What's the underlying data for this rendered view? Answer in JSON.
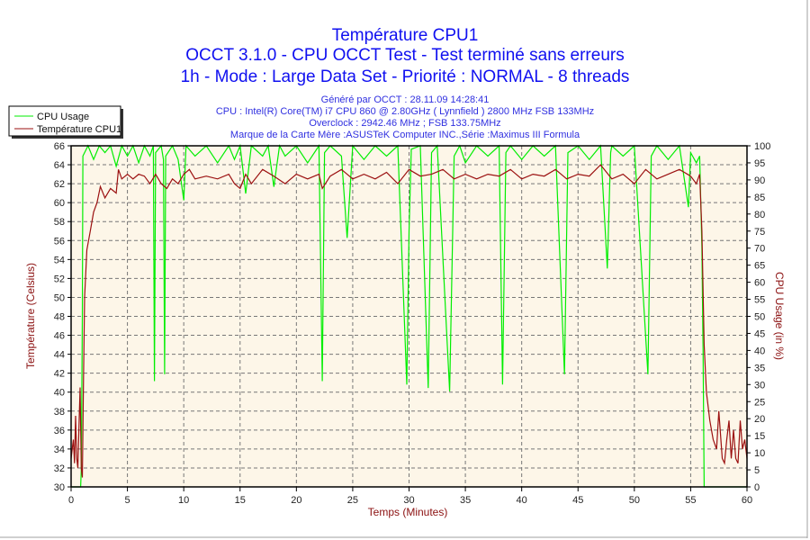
{
  "titles": [
    "Température CPU1",
    "OCCT 3.1.0 - CPU OCCT Test - Test terminé sans erreurs",
    "1h - Mode : Large Data Set - Priorité : NORMAL - 8 threads"
  ],
  "info": [
    "Généré par OCCT : 28.11.09 14:28:41",
    "CPU : Intel(R) Core(TM) i7 CPU 860 @ 2.80GHz ( Lynnfield ) 2800 MHz FSB 133MHz",
    "Overclock : 2942.46 MHz ; FSB 133.75MHz",
    "Marque de la Carte Mère :ASUSTeK Computer INC.,Série :Maximus III Formula"
  ],
  "chart_data": {
    "type": "line",
    "xlabel": "Temps (Minutes)",
    "ylabel": "Température (Celsius)",
    "y2label": "CPU Usage (in %)",
    "xlim": [
      0,
      60
    ],
    "ylim": [
      30,
      66
    ],
    "y2lim": [
      0,
      100
    ],
    "xticks": [
      0,
      5,
      10,
      15,
      20,
      25,
      30,
      35,
      40,
      45,
      50,
      55,
      60
    ],
    "yticks": [
      30,
      32,
      34,
      36,
      38,
      40,
      42,
      44,
      46,
      48,
      50,
      52,
      54,
      56,
      58,
      60,
      62,
      64,
      66
    ],
    "y2ticks": [
      0,
      5,
      10,
      15,
      20,
      25,
      30,
      35,
      40,
      45,
      50,
      55,
      60,
      65,
      70,
      75,
      80,
      85,
      90,
      95,
      100
    ],
    "grid": true,
    "legend": "top-left",
    "colors": {
      "cpu_usage": "#00ee00",
      "temperature": "#9b1010",
      "plot_bg": "#fdf6e8",
      "title": "#1010f0"
    },
    "series": [
      {
        "name": "CPU Usage",
        "axis": "right",
        "points": [
          [
            0,
            0
          ],
          [
            0.85,
            0
          ],
          [
            0.9,
            5
          ],
          [
            1.0,
            50
          ],
          [
            1.05,
            97
          ],
          [
            1.5,
            100
          ],
          [
            2,
            96
          ],
          [
            2.5,
            100
          ],
          [
            3,
            98
          ],
          [
            3.5,
            100
          ],
          [
            4,
            94
          ],
          [
            4.5,
            100
          ],
          [
            5,
            97
          ],
          [
            5.5,
            100
          ],
          [
            6,
            95
          ],
          [
            6.5,
            100
          ],
          [
            7,
            97
          ],
          [
            7.3,
            100
          ],
          [
            7.4,
            31
          ],
          [
            7.5,
            98
          ],
          [
            8,
            100
          ],
          [
            8.2,
            96
          ],
          [
            8.3,
            33
          ],
          [
            8.4,
            97
          ],
          [
            9,
            100
          ],
          [
            9.5,
            96
          ],
          [
            10,
            84
          ],
          [
            10.2,
            100
          ],
          [
            11,
            97
          ],
          [
            12,
            100
          ],
          [
            13,
            95
          ],
          [
            14,
            100
          ],
          [
            14.5,
            96
          ],
          [
            15,
            100
          ],
          [
            15.5,
            86
          ],
          [
            16,
            100
          ],
          [
            17,
            97
          ],
          [
            17.5,
            100
          ],
          [
            18,
            88
          ],
          [
            18.5,
            100
          ],
          [
            19,
            97
          ],
          [
            20,
            100
          ],
          [
            21,
            95
          ],
          [
            22,
            100
          ],
          [
            22.3,
            31
          ],
          [
            22.5,
            98
          ],
          [
            23,
            100
          ],
          [
            24,
            97
          ],
          [
            24.5,
            73
          ],
          [
            25,
            100
          ],
          [
            26,
            96
          ],
          [
            27,
            100
          ],
          [
            28,
            97
          ],
          [
            29,
            100
          ],
          [
            29.8,
            30
          ],
          [
            30,
            75
          ],
          [
            30.2,
            99
          ],
          [
            31,
            100
          ],
          [
            31.7,
            29
          ],
          [
            32,
            98
          ],
          [
            32.5,
            100
          ],
          [
            33.6,
            28
          ],
          [
            34,
            97
          ],
          [
            34.5,
            100
          ],
          [
            35,
            95
          ],
          [
            36,
            100
          ],
          [
            37,
            97
          ],
          [
            38,
            100
          ],
          [
            38.3,
            30
          ],
          [
            38.6,
            98
          ],
          [
            39,
            100
          ],
          [
            40,
            96
          ],
          [
            41,
            100
          ],
          [
            42,
            97
          ],
          [
            43,
            100
          ],
          [
            43.8,
            33
          ],
          [
            44.1,
            98
          ],
          [
            45,
            100
          ],
          [
            46,
            96
          ],
          [
            47,
            100
          ],
          [
            47.6,
            64
          ],
          [
            47.9,
            98
          ],
          [
            48,
            100
          ],
          [
            49,
            97
          ],
          [
            50,
            100
          ],
          [
            51.2,
            33
          ],
          [
            51.5,
            97
          ],
          [
            52,
            100
          ],
          [
            53,
            96
          ],
          [
            54,
            100
          ],
          [
            54.8,
            82
          ],
          [
            55,
            98
          ],
          [
            55.5,
            95
          ],
          [
            55.8,
            97
          ],
          [
            56,
            70
          ],
          [
            56.1,
            40
          ],
          [
            56.2,
            0
          ],
          [
            60,
            0
          ]
        ]
      },
      {
        "name": "Température CPU1",
        "axis": "left",
        "points": [
          [
            0,
            33
          ],
          [
            0.2,
            35
          ],
          [
            0.3,
            32.5
          ],
          [
            0.4,
            37.5
          ],
          [
            0.5,
            33
          ],
          [
            0.6,
            32
          ],
          [
            0.7,
            36.5
          ],
          [
            0.8,
            40.5
          ],
          [
            0.9,
            32
          ],
          [
            1.0,
            31
          ],
          [
            1.1,
            41.5
          ],
          [
            1.2,
            50
          ],
          [
            1.4,
            55
          ],
          [
            1.7,
            57
          ],
          [
            2,
            59
          ],
          [
            2.3,
            60
          ],
          [
            2.6,
            61.7
          ],
          [
            3,
            60.5
          ],
          [
            3.5,
            61.5
          ],
          [
            4,
            61
          ],
          [
            4.2,
            63.5
          ],
          [
            4.5,
            62.5
          ],
          [
            5,
            63
          ],
          [
            5.5,
            62.5
          ],
          [
            6,
            63
          ],
          [
            6.5,
            62.8
          ],
          [
            7,
            62
          ],
          [
            7.5,
            63
          ],
          [
            8,
            62
          ],
          [
            8.5,
            61.5
          ],
          [
            9,
            62.5
          ],
          [
            9.5,
            62
          ],
          [
            10,
            63
          ],
          [
            10.5,
            63.5
          ],
          [
            11,
            62.5
          ],
          [
            12,
            62.8
          ],
          [
            13,
            62.5
          ],
          [
            14,
            63
          ],
          [
            14.5,
            62
          ],
          [
            15,
            61.5
          ],
          [
            15.5,
            63
          ],
          [
            16,
            62
          ],
          [
            17,
            63.5
          ],
          [
            18,
            62.8
          ],
          [
            19,
            62
          ],
          [
            20,
            63
          ],
          [
            21,
            62.5
          ],
          [
            22,
            63
          ],
          [
            22.3,
            61.5
          ],
          [
            23,
            62.8
          ],
          [
            24,
            63.5
          ],
          [
            25,
            62.5
          ],
          [
            26,
            63
          ],
          [
            27,
            62.5
          ],
          [
            28,
            63.2
          ],
          [
            29,
            62
          ],
          [
            30,
            63.5
          ],
          [
            31,
            62.8
          ],
          [
            32,
            63
          ],
          [
            33,
            63.5
          ],
          [
            34,
            62.5
          ],
          [
            35,
            63
          ],
          [
            36,
            62.5
          ],
          [
            37,
            63
          ],
          [
            38,
            62.8
          ],
          [
            39,
            63.5
          ],
          [
            40,
            62.5
          ],
          [
            41,
            63
          ],
          [
            42,
            62.8
          ],
          [
            43,
            63.5
          ],
          [
            44,
            62.5
          ],
          [
            45,
            63
          ],
          [
            46,
            62.8
          ],
          [
            47,
            64
          ],
          [
            48,
            62.5
          ],
          [
            49,
            63
          ],
          [
            50,
            62
          ],
          [
            51,
            63.5
          ],
          [
            52,
            62.5
          ],
          [
            53,
            63
          ],
          [
            54,
            63.5
          ],
          [
            55,
            62.8
          ],
          [
            55.5,
            62
          ],
          [
            55.8,
            63
          ],
          [
            56,
            57
          ],
          [
            56.2,
            45
          ],
          [
            56.4,
            40
          ],
          [
            56.7,
            37
          ],
          [
            57,
            35
          ],
          [
            57.3,
            34
          ],
          [
            57.5,
            38
          ],
          [
            57.8,
            33
          ],
          [
            58,
            32.5
          ],
          [
            58.2,
            35
          ],
          [
            58.4,
            37
          ],
          [
            58.6,
            33
          ],
          [
            58.8,
            36
          ],
          [
            59,
            33
          ],
          [
            59.2,
            32.5
          ],
          [
            59.4,
            37
          ],
          [
            59.6,
            34
          ],
          [
            59.8,
            35
          ],
          [
            60,
            33
          ]
        ]
      }
    ]
  }
}
